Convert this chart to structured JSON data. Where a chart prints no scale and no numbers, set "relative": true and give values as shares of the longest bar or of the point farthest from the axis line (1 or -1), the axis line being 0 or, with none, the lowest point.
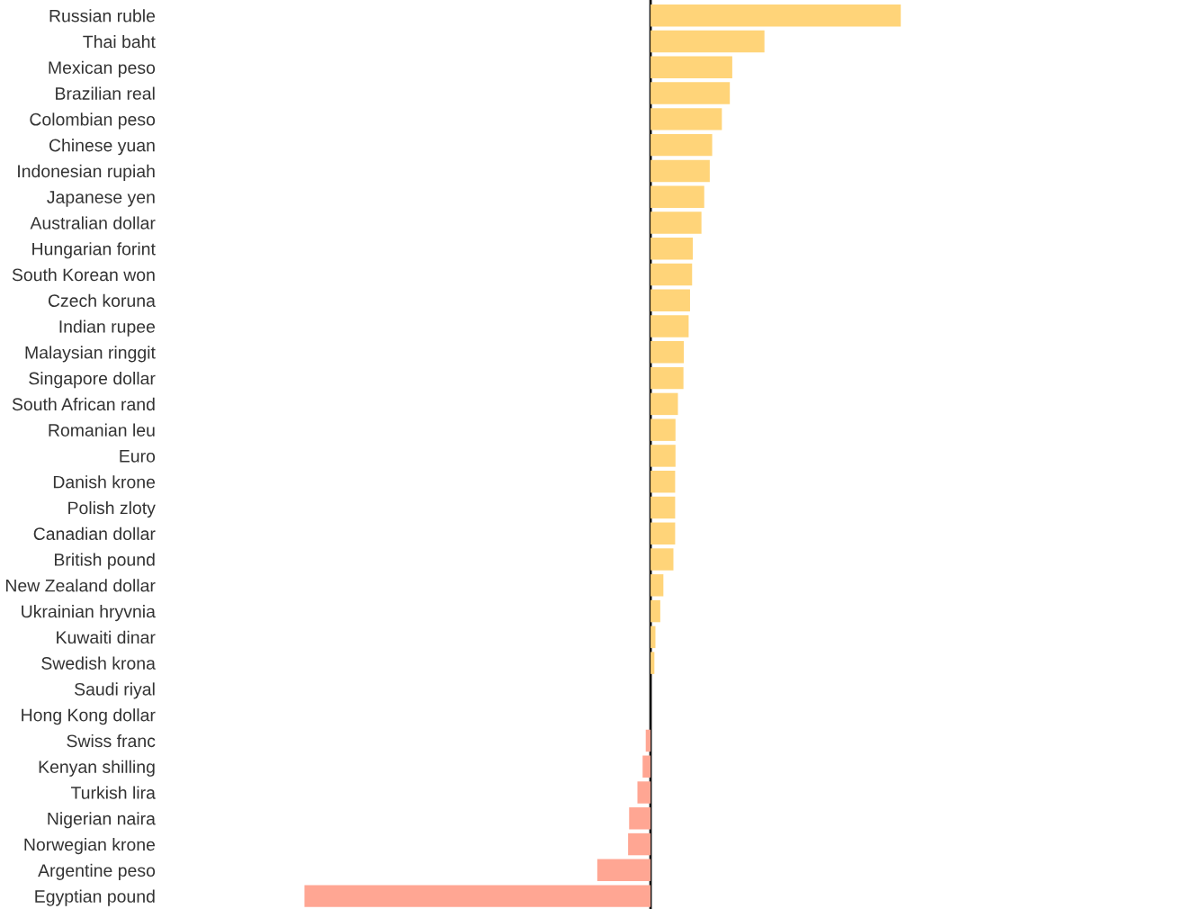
{
  "chart_data": {
    "type": "bar",
    "orientation": "horizontal",
    "relative": true,
    "categories": [
      "Russian ruble",
      "Thai baht",
      "Mexican peso",
      "Brazilian real",
      "Colombian peso",
      "Chinese yuan",
      "Indonesian rupiah",
      "Japanese yen",
      "Australian dollar",
      "Hungarian forint",
      "South Korean won",
      "Czech koruna",
      "Indian rupee",
      "Malaysian ringgit",
      "Singapore dollar",
      "South African rand",
      "Romanian leu",
      "Euro",
      "Danish krone",
      "Polish zloty",
      "Canadian dollar",
      "British pound",
      "New Zealand dollar",
      "Ukrainian hryvnia",
      "Kuwaiti dinar",
      "Swedish krona",
      "Saudi riyal",
      "Hong Kong dollar",
      "Swiss franc",
      "Kenyan shilling",
      "Turkish lira",
      "Nigerian naira",
      "Norwegian krone",
      "Argentine peso",
      "Egyptian pound"
    ],
    "values": [
      0.723,
      0.329,
      0.236,
      0.229,
      0.206,
      0.178,
      0.171,
      0.155,
      0.147,
      0.122,
      0.12,
      0.114,
      0.11,
      0.096,
      0.095,
      0.079,
      0.072,
      0.072,
      0.071,
      0.071,
      0.071,
      0.066,
      0.037,
      0.028,
      0.014,
      0.011,
      0,
      0,
      -0.014,
      -0.023,
      -0.038,
      -0.062,
      -0.065,
      -0.154,
      -1
    ],
    "colors": [
      "#ffd479",
      "#ffd479",
      "#ffd479",
      "#ffd479",
      "#ffd479",
      "#ffd479",
      "#ffd479",
      "#ffd479",
      "#ffd479",
      "#ffd479",
      "#ffd479",
      "#ffd479",
      "#ffd479",
      "#ffd479",
      "#ffd479",
      "#ffd479",
      "#ffd479",
      "#ffd479",
      "#ffd479",
      "#ffd479",
      "#ffd479",
      "#ffd479",
      "#ffd479",
      "#ffd479",
      "#ffd479",
      "#ffd479",
      "#ffd479",
      "#ffd479",
      "#ffa693",
      "#ffa693",
      "#ffa693",
      "#ffa693",
      "#ffa693",
      "#ffa693",
      "#ffa693"
    ]
  }
}
